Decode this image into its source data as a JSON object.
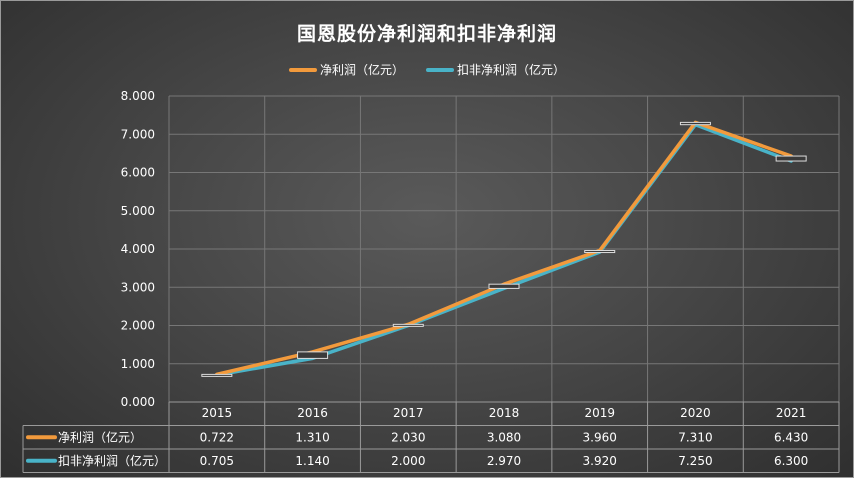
{
  "colors": {
    "net_profit": "#f29a3c",
    "deducted_net_profit": "#49b3c8",
    "grid": "#777777"
  },
  "chart_data": {
    "type": "line",
    "title": "国恩股份净利润和扣非净利润",
    "categories": [
      "2015",
      "2016",
      "2017",
      "2018",
      "2019",
      "2020",
      "2021"
    ],
    "series": [
      {
        "name": "净利润（亿元）",
        "values": [
          0.722,
          1.31,
          2.03,
          3.08,
          3.96,
          7.31,
          6.43
        ]
      },
      {
        "name": "扣非净利润（亿元）",
        "values": [
          0.705,
          1.14,
          2.0,
          2.97,
          3.92,
          7.25,
          6.3
        ]
      }
    ],
    "ylim": [
      0,
      8
    ],
    "yticks": [
      "0.000",
      "1.000",
      "2.000",
      "3.000",
      "4.000",
      "5.000",
      "6.000",
      "7.000",
      "8.000"
    ],
    "table_values": [
      [
        "0.722",
        "1.310",
        "2.030",
        "3.080",
        "3.960",
        "7.310",
        "6.430"
      ],
      [
        "0.705",
        "1.140",
        "2.000",
        "2.970",
        "3.920",
        "7.250",
        "6.300"
      ]
    ],
    "grid": true,
    "legend_position": "top",
    "data_table": true
  }
}
